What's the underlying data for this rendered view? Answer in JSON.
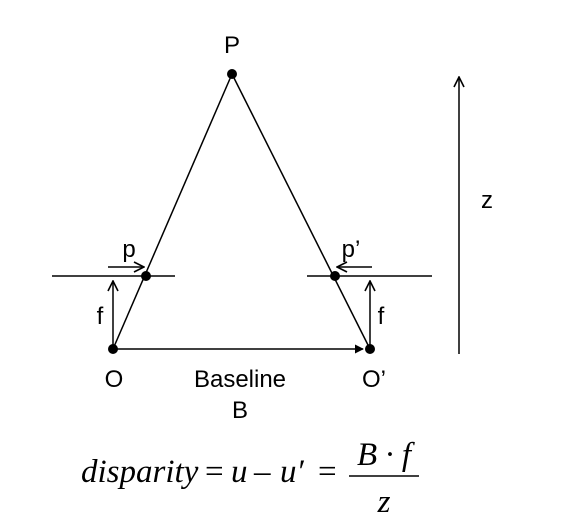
{
  "labels": {
    "point": "P",
    "left_image_point": "p",
    "right_image_point": "p’",
    "left_focal": "f",
    "right_focal": "f",
    "left_center": "O",
    "right_center": "O’",
    "baseline_word": "Baseline",
    "baseline_symbol": "B",
    "depth_axis": "z"
  },
  "equation": {
    "lhs": "disparity",
    "eq1": "=",
    "u": "u",
    "minus": "–",
    "u_prime": "u′",
    "eq2": "=",
    "numerator": "B · f",
    "denominator": "z"
  },
  "colors": {
    "ink": "#000000",
    "background": "#ffffff"
  }
}
